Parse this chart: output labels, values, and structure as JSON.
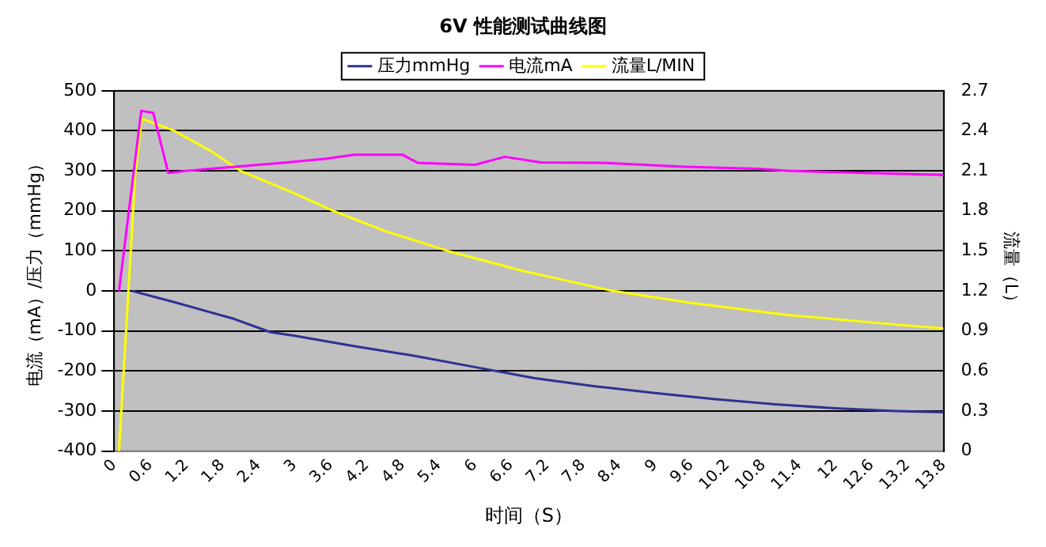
{
  "chart_data": {
    "type": "line",
    "title": "6V 性能测试曲线图",
    "xlabel": "时间（S）",
    "ylabel": "电流（mA）/压力（mmHg）",
    "y2label": "流量（L）",
    "xlim": [
      0,
      13.8
    ],
    "xticks": [
      0,
      0.6,
      1.2,
      1.8,
      2.4,
      3,
      3.6,
      4.2,
      4.8,
      5.4,
      6,
      6.6,
      7.2,
      7.8,
      8.4,
      9,
      9.6,
      10.2,
      10.8,
      11.4,
      12,
      12.6,
      13.2,
      13.8
    ],
    "ylim": [
      -400,
      500
    ],
    "yticks": [
      -400,
      -300,
      -200,
      -100,
      0,
      100,
      200,
      300,
      400,
      500
    ],
    "y2lim": [
      0,
      2.7
    ],
    "y2ticks": [
      0,
      0.3,
      0.6,
      0.9,
      1.2,
      1.5,
      1.8,
      2.1,
      2.4,
      2.7
    ],
    "grid": "y",
    "legend": "top",
    "marker": "none",
    "series": [
      {
        "name": "压力mmHg",
        "color": "#2e3192",
        "x": [
          0.3,
          1,
          2,
          2.6,
          3,
          4,
          5,
          6,
          7,
          8,
          9,
          10,
          11,
          12,
          13,
          13.8
        ],
        "values": [
          0,
          -28,
          -70,
          -103,
          -112,
          -138,
          -162,
          -190,
          -218,
          -238,
          -255,
          -270,
          -283,
          -293,
          -300,
          -303
        ]
      },
      {
        "name": "电流mA",
        "color": "#ff00ff",
        "x": [
          0.08,
          0.45,
          0.65,
          0.9,
          1.2,
          2,
          2.8,
          3.5,
          4,
          4.8,
          5.05,
          6,
          6.5,
          7.1,
          8.1,
          9.5,
          10.7,
          11.2,
          12.5,
          13.8
        ],
        "values": [
          0,
          450,
          445,
          295,
          300,
          310,
          320,
          330,
          340,
          340,
          320,
          315,
          335,
          321,
          320,
          310,
          305,
          300,
          295,
          290
        ]
      },
      {
        "name": "流量L/MIN",
        "color": "#ffff00",
        "axis": "y2",
        "x": [
          0.08,
          0.35,
          0.46,
          1,
          1.6,
          2.1,
          2.9,
          3.65,
          4.5,
          5.55,
          6.8,
          7.5,
          8.3,
          9.6,
          11.2,
          12.7,
          13.8
        ],
        "values": [
          0,
          2.07,
          2.49,
          2.4,
          2.25,
          2.1,
          1.95,
          1.8,
          1.65,
          1.5,
          1.35,
          1.28,
          1.2,
          1.11,
          1.02,
          0.96,
          0.92
        ]
      }
    ]
  }
}
